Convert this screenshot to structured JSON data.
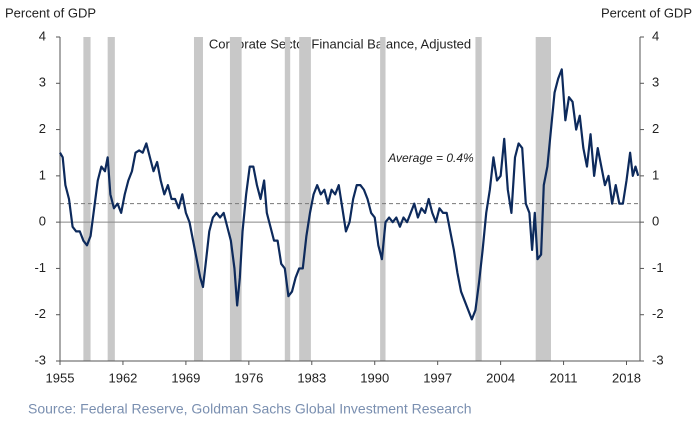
{
  "chart_data": {
    "type": "line",
    "title": "Corporate  Sector Financial Balance, Adjusted",
    "y_label": "Percent of GDP",
    "y2_label": "Percent of GDP",
    "source": "Source: Federal Reserve, Goldman Sachs Global Investment Research",
    "x": [
      1955.0,
      1955.3,
      1955.6,
      1956.0,
      1956.4,
      1956.8,
      1957.2,
      1957.6,
      1958.0,
      1958.4,
      1958.8,
      1959.2,
      1959.6,
      1960.0,
      1960.3,
      1960.6,
      1961.0,
      1961.4,
      1961.8,
      1962.2,
      1962.6,
      1963.0,
      1963.4,
      1963.8,
      1964.2,
      1964.6,
      1965.0,
      1965.4,
      1965.8,
      1966.2,
      1966.6,
      1967.0,
      1967.4,
      1967.8,
      1968.2,
      1968.6,
      1969.0,
      1969.4,
      1969.8,
      1970.2,
      1970.6,
      1970.9,
      1971.2,
      1971.6,
      1972.0,
      1972.4,
      1972.8,
      1973.2,
      1973.6,
      1974.0,
      1974.4,
      1974.7,
      1975.0,
      1975.3,
      1975.7,
      1976.1,
      1976.5,
      1976.9,
      1977.3,
      1977.7,
      1978.0,
      1978.4,
      1978.8,
      1979.2,
      1979.6,
      1980.0,
      1980.4,
      1980.8,
      1981.2,
      1981.6,
      1982.0,
      1982.4,
      1982.8,
      1983.2,
      1983.6,
      1984.0,
      1984.4,
      1984.8,
      1985.2,
      1985.6,
      1986.0,
      1986.4,
      1986.8,
      1987.2,
      1987.6,
      1988.0,
      1988.4,
      1988.8,
      1989.2,
      1989.6,
      1990.0,
      1990.4,
      1990.8,
      1991.2,
      1991.6,
      1992.0,
      1992.4,
      1992.8,
      1993.2,
      1993.6,
      1994.0,
      1994.4,
      1994.8,
      1995.2,
      1995.6,
      1996.0,
      1996.4,
      1996.8,
      1997.2,
      1997.6,
      1998.0,
      1998.4,
      1998.8,
      1999.2,
      1999.6,
      2000.0,
      2000.4,
      2000.8,
      2001.2,
      2001.6,
      2002.0,
      2002.4,
      2002.8,
      2003.2,
      2003.6,
      2004.0,
      2004.4,
      2004.8,
      2005.2,
      2005.6,
      2006.0,
      2006.4,
      2006.8,
      2007.2,
      2007.5,
      2007.8,
      2008.1,
      2008.5,
      2008.8,
      2009.2,
      2009.6,
      2010.0,
      2010.4,
      2010.8,
      2011.2,
      2011.6,
      2012.0,
      2012.4,
      2012.8,
      2013.2,
      2013.6,
      2014.0,
      2014.4,
      2014.8,
      2015.2,
      2015.6,
      2016.0,
      2016.4,
      2016.8,
      2017.2,
      2017.6,
      2018.0,
      2018.4,
      2018.7,
      2019.0,
      2019.3
    ],
    "series": [
      {
        "color": "#0d2a5c",
        "values": [
          1.5,
          1.4,
          0.8,
          0.5,
          -0.1,
          -0.2,
          -0.2,
          -0.4,
          -0.5,
          -0.3,
          0.3,
          0.9,
          1.2,
          1.1,
          1.4,
          0.6,
          0.3,
          0.4,
          0.2,
          0.6,
          0.9,
          1.1,
          1.5,
          1.55,
          1.5,
          1.7,
          1.4,
          1.1,
          1.3,
          0.9,
          0.6,
          0.8,
          0.5,
          0.5,
          0.3,
          0.6,
          0.2,
          0,
          -0.4,
          -0.8,
          -1.2,
          -1.4,
          -0.9,
          -0.2,
          0.1,
          0.2,
          0.1,
          0.2,
          -0.1,
          -0.4,
          -1.0,
          -1.8,
          -1.2,
          -0.2,
          0.6,
          1.2,
          1.2,
          0.8,
          0.5,
          0.9,
          0.2,
          -0.1,
          -0.4,
          -0.4,
          -0.9,
          -1.0,
          -1.6,
          -1.5,
          -1.2,
          -1.0,
          -1.0,
          -0.3,
          0.2,
          0.6,
          0.8,
          0.6,
          0.7,
          0.4,
          0.7,
          0.6,
          0.8,
          0.3,
          -0.2,
          0,
          0.5,
          0.8,
          0.8,
          0.7,
          0.5,
          0.2,
          0.1,
          -0.5,
          -0.8,
          0,
          0.1,
          0,
          0.1,
          -0.1,
          0.1,
          0,
          0.2,
          0.4,
          0.1,
          0.3,
          0.2,
          0.5,
          0.2,
          0,
          0.3,
          0.2,
          0.2,
          -0.2,
          -0.6,
          -1.1,
          -1.5,
          -1.7,
          -1.9,
          -2.1,
          -1.9,
          -1.3,
          -0.6,
          0.2,
          0.7,
          1.4,
          0.9,
          1.0,
          1.8,
          0.7,
          0.2,
          1.4,
          1.7,
          1.6,
          0.4,
          0.2,
          -0.6,
          0.2,
          -0.8,
          -0.7,
          0.8,
          1.2,
          2.0,
          2.8,
          3.1,
          3.3,
          2.2,
          2.7,
          2.6,
          2.0,
          2.3,
          1.6,
          1.2,
          1.9,
          1.0,
          1.6,
          1.2,
          0.8,
          1.0,
          0.4,
          0.8,
          0.4,
          0.4,
          0.9,
          1.5,
          1.0,
          1.2,
          1.0
        ]
      }
    ],
    "shaded_periods": [
      [
        1957.6,
        1958.4
      ],
      [
        1960.3,
        1961.1
      ],
      [
        1969.9,
        1970.9
      ],
      [
        1973.9,
        1975.2
      ],
      [
        1980.0,
        1980.6
      ],
      [
        1981.6,
        1982.9
      ],
      [
        1990.6,
        1991.2
      ],
      [
        2001.2,
        2001.9
      ],
      [
        2007.9,
        2009.6
      ]
    ],
    "average": 0.4,
    "average_label": "Average = 0.4%",
    "xlim": [
      1955,
      2019.5
    ],
    "xticks": [
      1955,
      1962,
      1969,
      1976,
      1983,
      1990,
      1997,
      2004,
      2011,
      2018
    ],
    "ylim": [
      -3,
      4
    ],
    "yticks": [
      -3,
      -2,
      -1,
      0,
      1,
      2,
      3,
      4
    ],
    "y2lim": [
      -3,
      4
    ],
    "y2ticks": [
      -3,
      -2,
      -1,
      0,
      1,
      2,
      3,
      4
    ]
  }
}
